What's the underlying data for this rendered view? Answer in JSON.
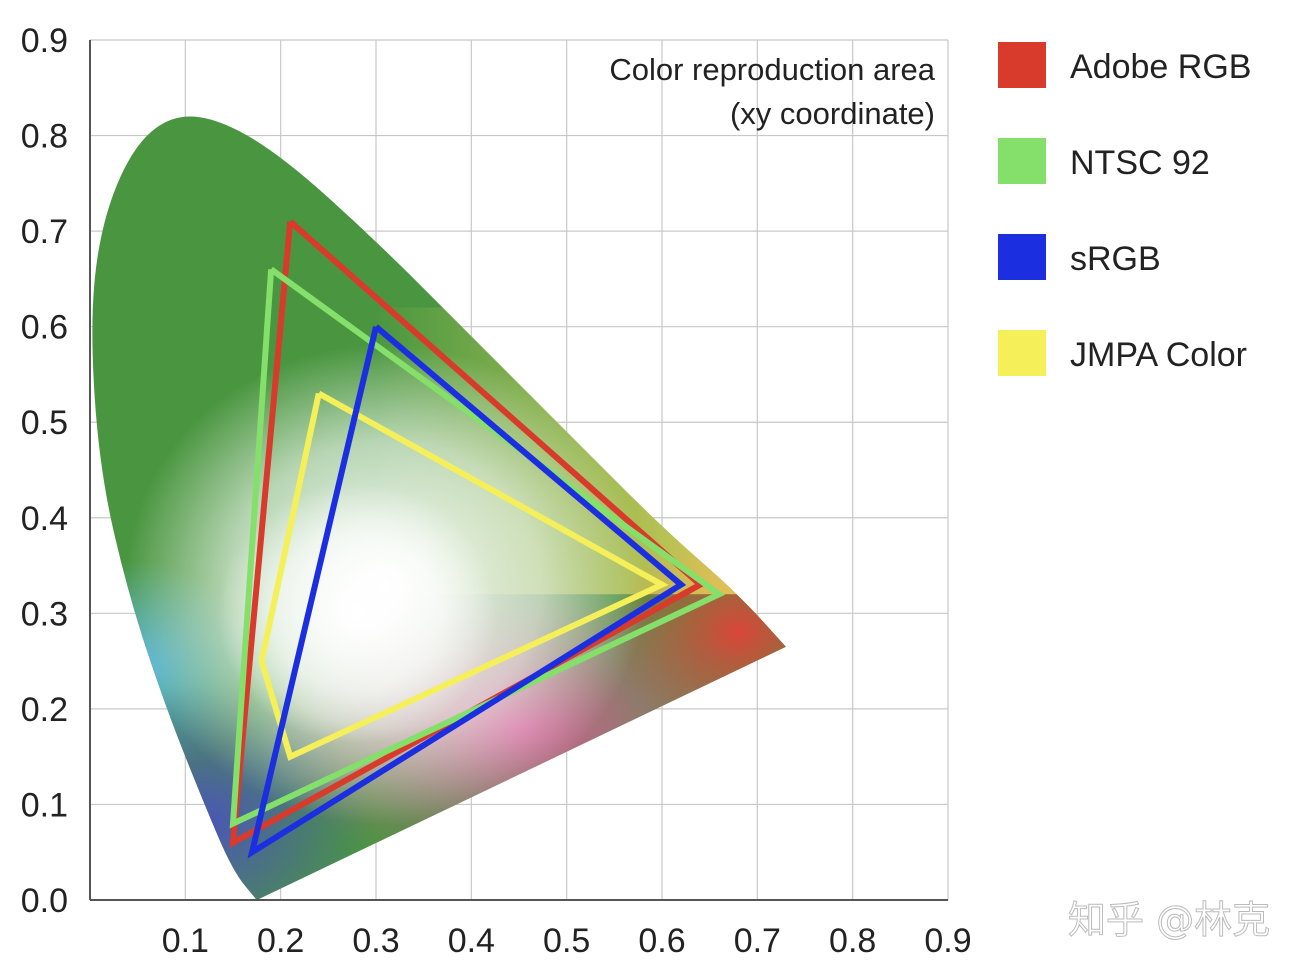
{
  "chart_data": {
    "type": "line",
    "annotation": [
      "Color reproduction area",
      "(xy coordinate)"
    ],
    "xlim": [
      0.0,
      0.9
    ],
    "ylim": [
      0.0,
      0.9
    ],
    "x_ticks": [
      "0.1",
      "0.2",
      "0.3",
      "0.4",
      "0.5",
      "0.6",
      "0.7",
      "0.8",
      "0.9"
    ],
    "y_ticks": [
      "0.9",
      "0.8",
      "0.7",
      "0.6",
      "0.5",
      "0.4",
      "0.3",
      "0.2",
      "0.1",
      "0.0"
    ],
    "grid": true,
    "legend_position": "right",
    "series": [
      {
        "name": "Adobe RGB",
        "color": "#d83a2c",
        "x": [
          0.21,
          0.64,
          0.15,
          0.21
        ],
        "y": [
          0.71,
          0.33,
          0.06,
          0.71
        ]
      },
      {
        "name": "NTSC 92",
        "color": "#84e06a",
        "x": [
          0.19,
          0.66,
          0.15,
          0.19
        ],
        "y": [
          0.66,
          0.32,
          0.08,
          0.66
        ]
      },
      {
        "name": "sRGB",
        "color": "#1b2fe0",
        "x": [
          0.3,
          0.62,
          0.17,
          0.3
        ],
        "y": [
          0.6,
          0.33,
          0.05,
          0.6
        ]
      },
      {
        "name": "JMPA Color",
        "color": "#f5f059",
        "x": [
          0.24,
          0.6,
          0.21,
          0.18,
          0.24
        ],
        "y": [
          0.53,
          0.33,
          0.15,
          0.25,
          0.53
        ]
      }
    ],
    "locus": {
      "x": [
        0.175,
        0.15,
        0.12,
        0.08,
        0.04,
        0.01,
        0.0,
        0.01,
        0.04,
        0.08,
        0.13,
        0.2,
        0.3,
        0.4,
        0.5,
        0.6,
        0.68,
        0.73
      ],
      "y": [
        0.0,
        0.03,
        0.1,
        0.2,
        0.32,
        0.45,
        0.6,
        0.7,
        0.78,
        0.82,
        0.82,
        0.78,
        0.69,
        0.59,
        0.49,
        0.39,
        0.32,
        0.265
      ]
    }
  },
  "watermark": "知乎 @林克"
}
